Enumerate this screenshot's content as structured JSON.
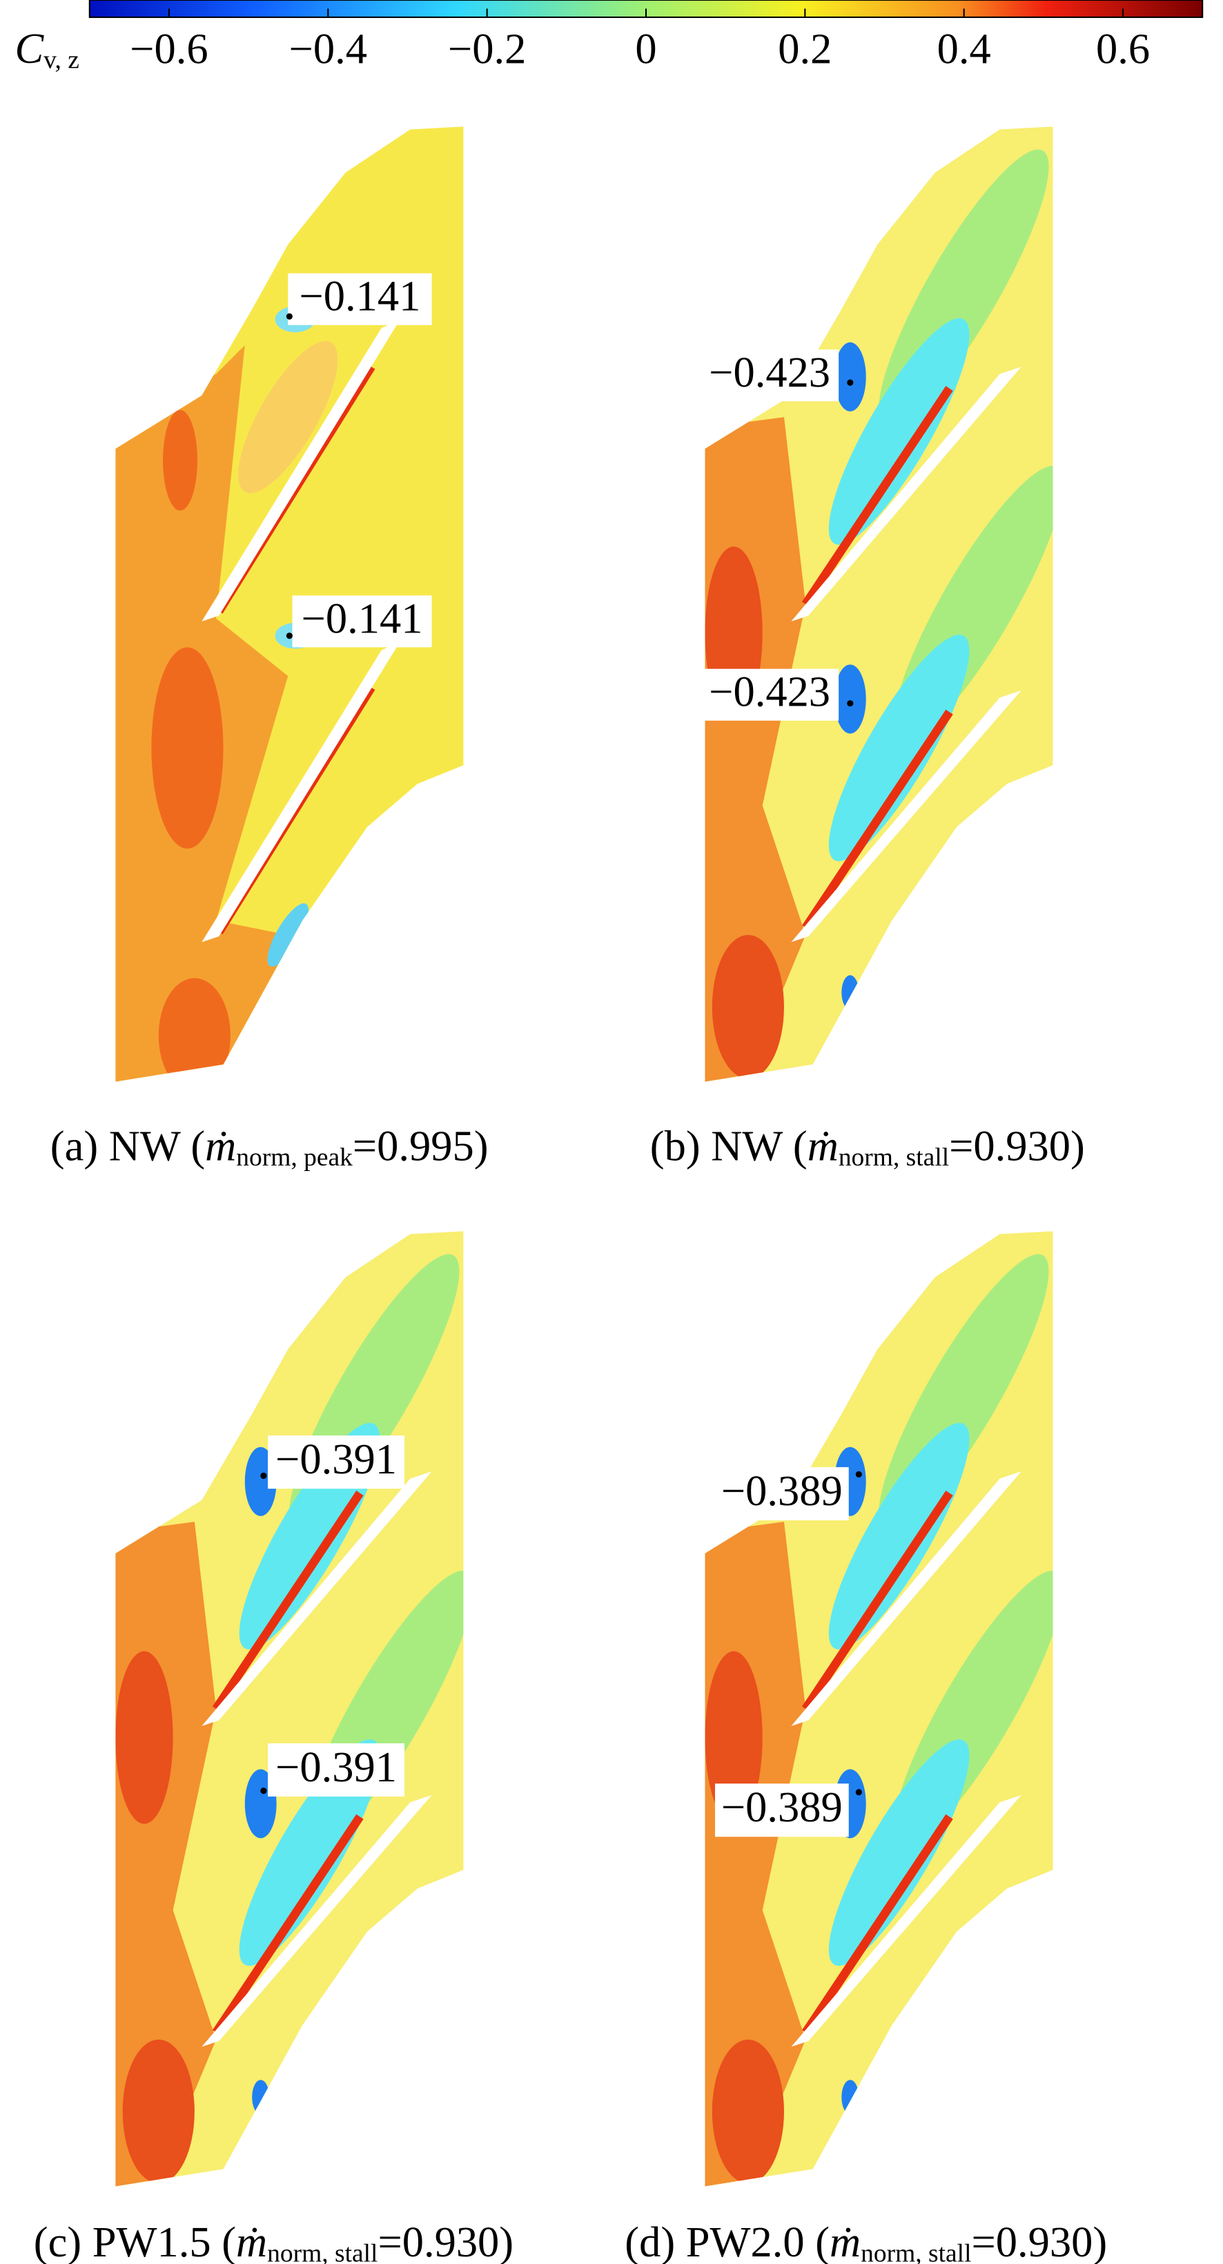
{
  "colorbar": {
    "label": "C",
    "label_subscript": "v, z",
    "lim": [
      -0.7,
      0.7
    ],
    "ticks": [
      {
        "value": -0.6,
        "label": "−0.6"
      },
      {
        "value": -0.4,
        "label": "−0.4"
      },
      {
        "value": -0.2,
        "label": "−0.2"
      },
      0,
      0.2,
      0.4,
      0.6
    ]
  },
  "panels": [
    {
      "caption": {
        "prefix": "(a) NW (",
        "symbol": "ṁ",
        "subscript": "norm, peak",
        "suffix": "=0.995)"
      },
      "annotations": [
        "−0.141",
        "−0.141"
      ]
    },
    {
      "caption": {
        "prefix": "(b) NW (",
        "symbol": "ṁ",
        "subscript": "norm, stall",
        "suffix": "=0.930)"
      },
      "annotations": [
        "−0.423",
        "−0.423"
      ]
    },
    {
      "caption": {
        "prefix": "(c) PW1.5 (",
        "symbol": "ṁ",
        "subscript": "norm, stall",
        "suffix": "=0.930)"
      },
      "annotations": [
        "−0.391",
        "−0.391"
      ]
    },
    {
      "caption": {
        "prefix": "(d) PW2.0 (",
        "symbol": "ṁ",
        "subscript": "norm, stall",
        "suffix": "=0.930)"
      },
      "annotations": [
        "−0.389",
        "−0.389"
      ]
    }
  ]
}
